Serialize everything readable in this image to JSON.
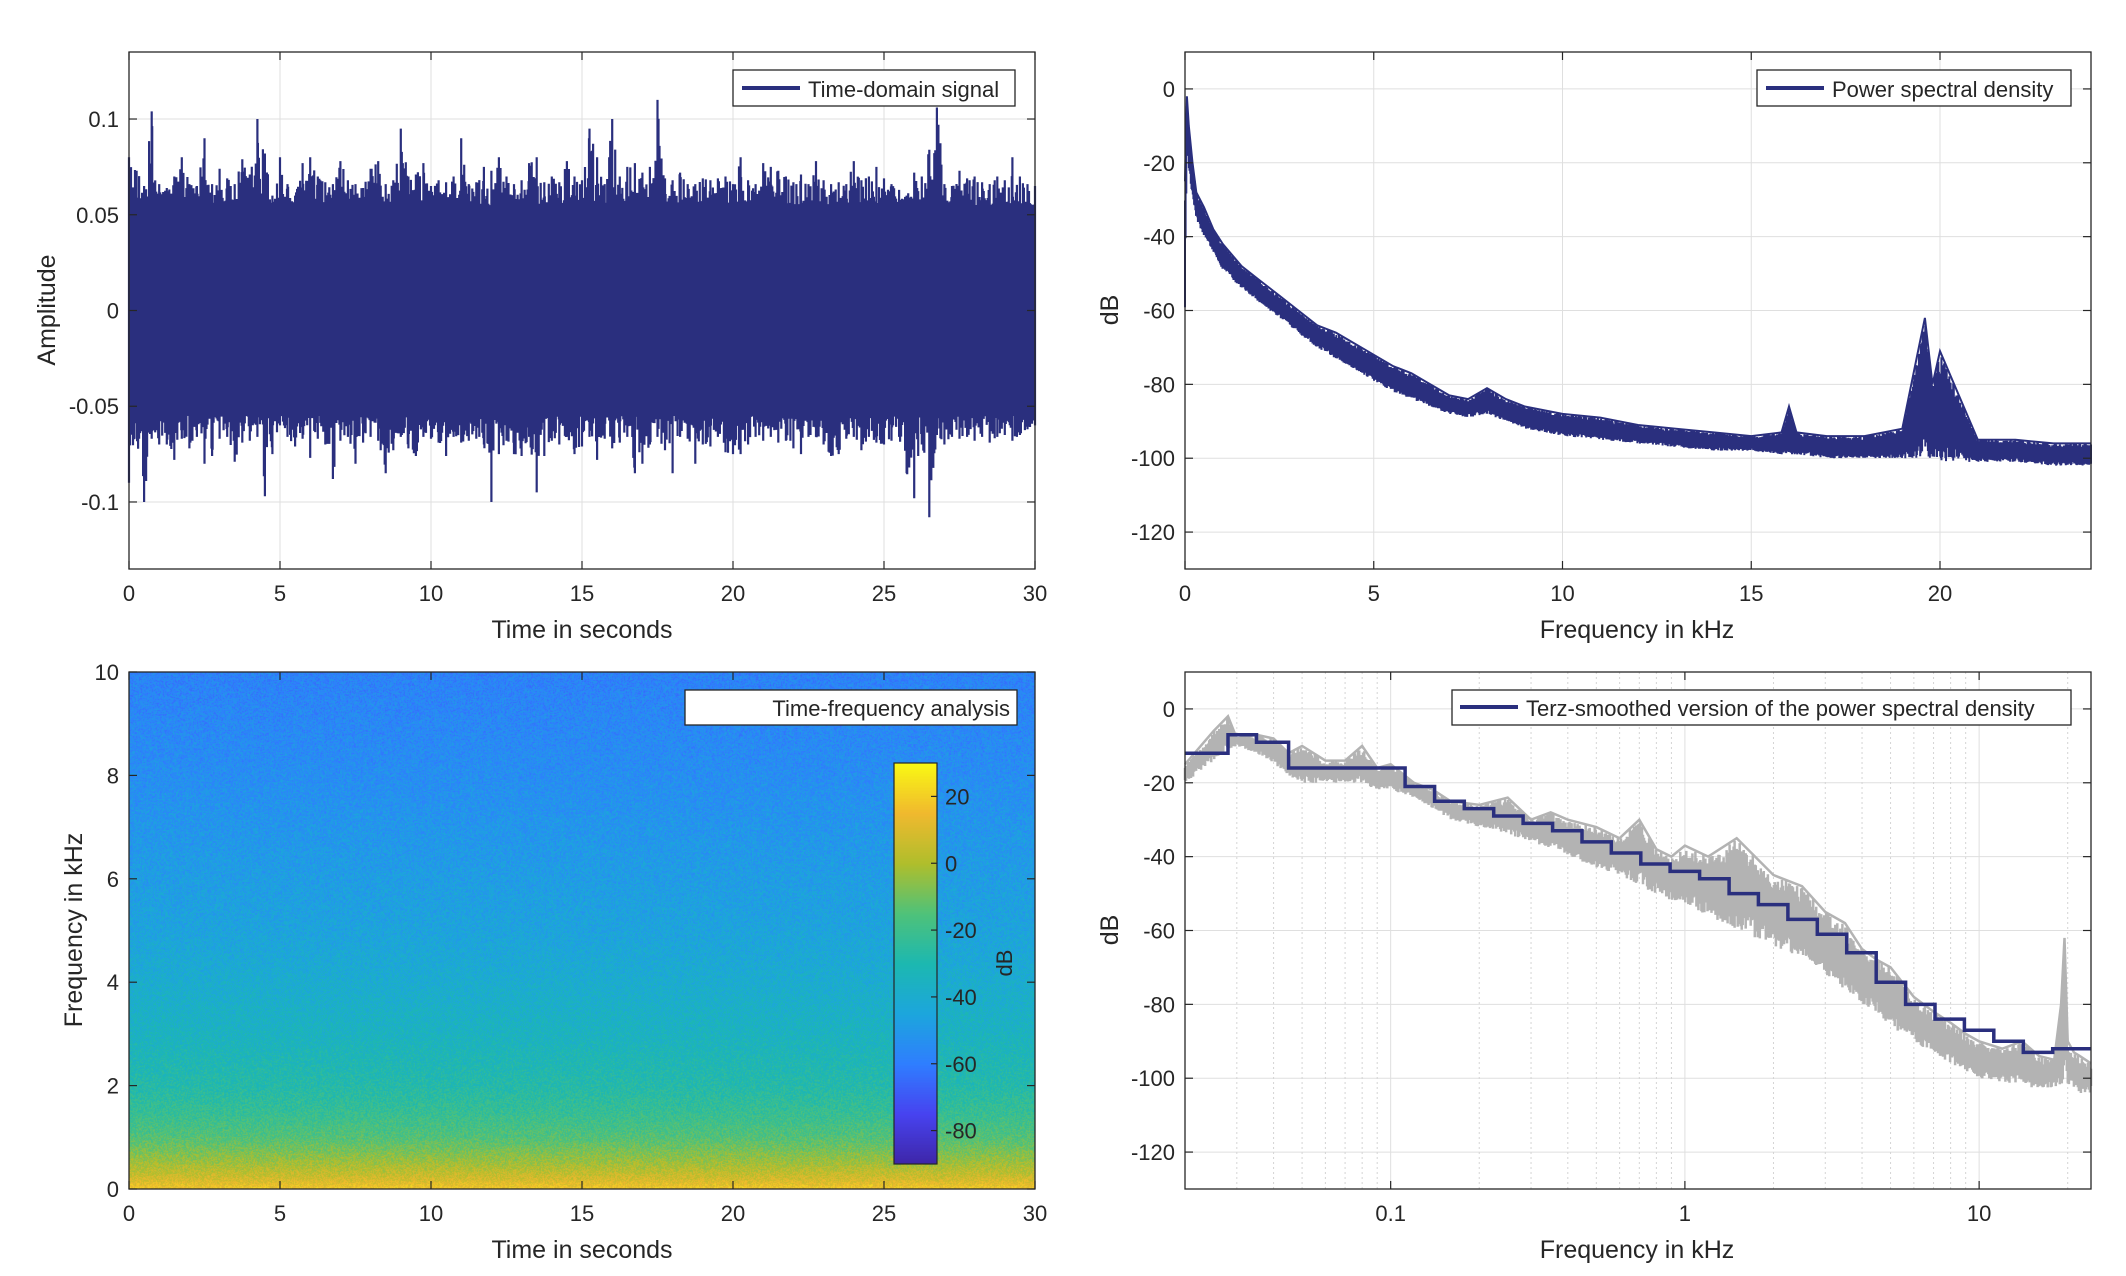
{
  "figure": {
    "background": "#ffffff",
    "line_color": "#2a2f7e",
    "smoothed_raw_color": "#b3b3b3"
  },
  "chart_data": [
    {
      "type": "line",
      "id": "time-domain",
      "xlabel": "Time in seconds",
      "ylabel": "Amplitude",
      "xlim": [
        0,
        30
      ],
      "ylim": [
        -0.135,
        0.135
      ],
      "xticks": [
        0,
        5,
        10,
        15,
        20,
        25,
        30
      ],
      "xtick_labels": [
        "0",
        "5",
        "10",
        "15",
        "20",
        "25",
        "30"
      ],
      "yticks": [
        -0.1,
        -0.05,
        0,
        0.05,
        0.1
      ],
      "ytick_labels": [
        "-0.1",
        "-0.05",
        "0",
        "0.05",
        "0.1"
      ],
      "grid": true,
      "legend": {
        "placement": "top-right",
        "entries": [
          "Time-domain signal"
        ]
      },
      "series": [
        {
          "name": "Time-domain signal",
          "description_stats": {
            "typical_band": [
              -0.055,
              0.055
            ]
          },
          "t": [
            0,
            0.25,
            0.5,
            0.75,
            1.0,
            1.25,
            1.5,
            1.75,
            2.0,
            2.25,
            2.5,
            2.75,
            3.0,
            3.25,
            3.5,
            3.75,
            4.0,
            4.25,
            4.5,
            4.75,
            5.0,
            5.25,
            5.5,
            5.75,
            6.0,
            6.25,
            6.5,
            6.75,
            7.0,
            7.25,
            7.5,
            7.75,
            8.0,
            8.25,
            8.5,
            8.75,
            9.0,
            9.25,
            9.5,
            9.75,
            10.0,
            10.25,
            10.5,
            10.75,
            11.0,
            11.25,
            11.5,
            11.75,
            12.0,
            12.25,
            12.5,
            12.75,
            13.0,
            13.25,
            13.5,
            13.75,
            14.0,
            14.25,
            14.5,
            14.75,
            15.0,
            15.25,
            15.5,
            15.75,
            16.0,
            16.25,
            16.5,
            16.75,
            17.0,
            17.25,
            17.5,
            17.75,
            18.0,
            18.25,
            18.5,
            18.75,
            19.0,
            19.25,
            19.5,
            19.75,
            20.0,
            20.25,
            20.5,
            20.75,
            21.0,
            21.25,
            21.5,
            21.75,
            22.0,
            22.25,
            22.5,
            22.75,
            23.0,
            23.25,
            23.5,
            23.75,
            24.0,
            24.25,
            24.5,
            24.75,
            25.0,
            25.25,
            25.5,
            25.75,
            26.0,
            26.25,
            26.5,
            26.75,
            27.0,
            27.25,
            27.5,
            27.75,
            28.0,
            28.25,
            28.5,
            28.75,
            29.0,
            29.25,
            29.5,
            29.75,
            30.0
          ],
          "max": [
            0.08,
            0.073,
            0.065,
            0.104,
            0.066,
            0.064,
            0.07,
            0.08,
            0.066,
            0.065,
            0.09,
            0.066,
            0.074,
            0.069,
            0.066,
            0.079,
            0.071,
            0.1,
            0.082,
            0.06,
            0.08,
            0.066,
            0.06,
            0.077,
            0.08,
            0.07,
            0.067,
            0.066,
            0.078,
            0.068,
            0.066,
            0.064,
            0.074,
            0.078,
            0.066,
            0.068,
            0.095,
            0.07,
            0.071,
            0.077,
            0.065,
            0.068,
            0.067,
            0.07,
            0.09,
            0.066,
            0.067,
            0.075,
            0.073,
            0.08,
            0.07,
            0.066,
            0.068,
            0.077,
            0.08,
            0.067,
            0.07,
            0.067,
            0.078,
            0.07,
            0.068,
            0.095,
            0.08,
            0.066,
            0.1,
            0.07,
            0.075,
            0.077,
            0.072,
            0.075,
            0.11,
            0.069,
            0.068,
            0.072,
            0.066,
            0.066,
            0.069,
            0.068,
            0.069,
            0.07,
            0.066,
            0.08,
            0.068,
            0.066,
            0.077,
            0.075,
            0.073,
            0.07,
            0.067,
            0.071,
            0.066,
            0.078,
            0.068,
            0.066,
            0.067,
            0.066,
            0.078,
            0.068,
            0.07,
            0.075,
            0.069,
            0.066,
            0.063,
            0.06,
            0.072,
            0.07,
            0.084,
            0.106,
            0.066,
            0.065,
            0.073,
            0.069,
            0.07,
            0.067,
            0.066,
            0.07,
            0.068,
            0.08,
            0.07,
            0.066,
            0.065
          ],
          "min": [
            -0.09,
            -0.067,
            -0.1,
            -0.067,
            -0.07,
            -0.07,
            -0.078,
            -0.067,
            -0.072,
            -0.066,
            -0.08,
            -0.076,
            -0.067,
            -0.066,
            -0.079,
            -0.069,
            -0.068,
            -0.066,
            -0.097,
            -0.075,
            -0.06,
            -0.066,
            -0.071,
            -0.067,
            -0.077,
            -0.067,
            -0.07,
            -0.088,
            -0.068,
            -0.066,
            -0.08,
            -0.069,
            -0.066,
            -0.068,
            -0.085,
            -0.073,
            -0.066,
            -0.072,
            -0.076,
            -0.066,
            -0.067,
            -0.069,
            -0.076,
            -0.066,
            -0.069,
            -0.068,
            -0.067,
            -0.07,
            -0.1,
            -0.075,
            -0.068,
            -0.075,
            -0.076,
            -0.066,
            -0.095,
            -0.076,
            -0.068,
            -0.07,
            -0.066,
            -0.075,
            -0.071,
            -0.066,
            -0.078,
            -0.067,
            -0.072,
            -0.069,
            -0.066,
            -0.085,
            -0.08,
            -0.07,
            -0.066,
            -0.073,
            -0.085,
            -0.066,
            -0.067,
            -0.08,
            -0.07,
            -0.071,
            -0.066,
            -0.074,
            -0.075,
            -0.075,
            -0.07,
            -0.066,
            -0.068,
            -0.066,
            -0.069,
            -0.068,
            -0.072,
            -0.075,
            -0.066,
            -0.066,
            -0.07,
            -0.076,
            -0.075,
            -0.067,
            -0.066,
            -0.073,
            -0.066,
            -0.069,
            -0.07,
            -0.068,
            -0.066,
            -0.085,
            -0.098,
            -0.07,
            -0.108,
            -0.065,
            -0.07,
            -0.066,
            -0.067,
            -0.066,
            -0.068,
            -0.066,
            -0.069,
            -0.066,
            -0.065,
            -0.068,
            -0.065,
            -0.062,
            -0.06
          ]
        }
      ]
    },
    {
      "type": "line",
      "id": "psd",
      "xlabel": "Frequency in kHz",
      "ylabel": "dB",
      "xlim": [
        0,
        24
      ],
      "ylim": [
        -130,
        10
      ],
      "xticks": [
        0,
        5,
        10,
        15,
        20
      ],
      "xtick_labels": [
        "0",
        "5",
        "10",
        "15",
        "20"
      ],
      "yticks": [
        0,
        -20,
        -40,
        -60,
        -80,
        -100,
        -120
      ],
      "ytick_labels": [
        "0",
        "-20",
        "-40",
        "-60",
        "-80",
        "-100",
        "-120"
      ],
      "grid": true,
      "legend": {
        "placement": "top-right",
        "entries": [
          "Power spectral density"
        ]
      },
      "series": [
        {
          "name": "Power spectral density",
          "f": [
            0,
            0.05,
            0.1,
            0.2,
            0.3,
            0.5,
            0.75,
            1.0,
            1.5,
            2.0,
            2.5,
            3.0,
            3.5,
            4.0,
            4.5,
            5.0,
            5.5,
            6.0,
            6.5,
            7.0,
            7.5,
            8.0,
            8.5,
            9.0,
            10.0,
            11.0,
            12.0,
            13.0,
            14.0,
            15.0,
            15.8,
            16.0,
            16.2,
            17.0,
            18.0,
            19.0,
            19.4,
            19.6,
            19.8,
            20.0,
            21.0,
            22.0,
            23.0,
            24.0
          ],
          "upper": [
            -25,
            -2,
            -10,
            -20,
            -28,
            -32,
            -38,
            -42,
            -48,
            -52,
            -56,
            -60,
            -64,
            -66,
            -69,
            -72,
            -75,
            -77,
            -80,
            -83,
            -84,
            -81,
            -84,
            -86,
            -88,
            -89,
            -91,
            -92,
            -93,
            -94,
            -93,
            -86,
            -93,
            -94,
            -94,
            -92,
            -72,
            -62,
            -80,
            -71,
            -95,
            -95,
            -96,
            -96
          ],
          "lower": [
            -60,
            -15,
            -22,
            -30,
            -35,
            -40,
            -44,
            -49,
            -54,
            -58,
            -62,
            -66,
            -70,
            -73,
            -76,
            -79,
            -82,
            -84,
            -86,
            -88,
            -89,
            -88,
            -90,
            -92,
            -94,
            -95,
            -96,
            -97,
            -98,
            -98,
            -99,
            -99,
            -99,
            -100,
            -100,
            -100,
            -100,
            -100,
            -100,
            -101,
            -101,
            -101,
            -102,
            -102
          ]
        }
      ]
    },
    {
      "type": "heatmap",
      "id": "spectrogram",
      "xlabel": "Time in seconds",
      "ylabel": "Frequency in kHz",
      "xlim": [
        0,
        30
      ],
      "ylim": [
        0,
        10
      ],
      "xticks": [
        0,
        5,
        10,
        15,
        20,
        25,
        30
      ],
      "xtick_labels": [
        "0",
        "5",
        "10",
        "15",
        "20",
        "25",
        "30"
      ],
      "yticks": [
        0,
        2,
        4,
        6,
        8,
        10
      ],
      "ytick_labels": [
        "0",
        "2",
        "4",
        "6",
        "8",
        "10"
      ],
      "title_box": "Time-frequency analysis",
      "colorbar": {
        "label": "dB",
        "range": [
          -90,
          30
        ],
        "ticks": [
          20,
          0,
          -20,
          -40,
          -60,
          -80
        ],
        "tick_labels": [
          "20",
          "0",
          "-20",
          "-40",
          "-60",
          "-80"
        ],
        "colormap": [
          "#3e26a8",
          "#4743f0",
          "#2f7eff",
          "#1ca6dd",
          "#1cb8b1",
          "#4fc27a",
          "#b0be2c",
          "#f0b92e",
          "#f9f914"
        ]
      },
      "profile_freq_khz": [
        0,
        0.2,
        0.5,
        1,
        1.5,
        2,
        3,
        4,
        5,
        6,
        7,
        8,
        9,
        10
      ],
      "profile_db": [
        18,
        8,
        -2,
        -15,
        -22,
        -28,
        -35,
        -40,
        -45,
        -48,
        -51,
        -54,
        -56,
        -58
      ]
    },
    {
      "type": "line",
      "id": "terz",
      "xlabel": "Frequency in kHz",
      "ylabel": "dB",
      "xscale": "log",
      "xlim": [
        0.02,
        24
      ],
      "ylim": [
        -130,
        10
      ],
      "xticks": [
        0.1,
        1,
        10
      ],
      "xtick_labels": [
        "0.1",
        "1",
        "10"
      ],
      "yticks": [
        0,
        -20,
        -40,
        -60,
        -80,
        -100,
        -120
      ],
      "ytick_labels": [
        "0",
        "-20",
        "-40",
        "-60",
        "-80",
        "-100",
        "-120"
      ],
      "grid": true,
      "legend": {
        "placement": "top-right",
        "entries": [
          "Terz-smoothed version of the power spectral density"
        ]
      },
      "series": [
        {
          "name": "raw-psd-gray",
          "f": [
            0.02,
            0.025,
            0.028,
            0.03,
            0.035,
            0.04,
            0.045,
            0.05,
            0.06,
            0.07,
            0.08,
            0.09,
            0.1,
            0.12,
            0.14,
            0.16,
            0.2,
            0.25,
            0.3,
            0.35,
            0.4,
            0.5,
            0.6,
            0.7,
            0.8,
            0.9,
            1.0,
            1.2,
            1.5,
            2.0,
            2.5,
            3.0,
            3.5,
            4.0,
            4.5,
            5.0,
            6.0,
            7.0,
            8.0,
            9.0,
            10.0,
            12.0,
            14.0,
            16.0,
            18.0,
            19.0,
            19.5,
            20.0,
            21.0,
            22.0,
            24.0
          ],
          "upper": [
            -15,
            -6,
            -2,
            -8,
            -7,
            -8,
            -12,
            -10,
            -14,
            -14,
            -10,
            -16,
            -15,
            -20,
            -22,
            -25,
            -26,
            -24,
            -30,
            -28,
            -30,
            -32,
            -35,
            -30,
            -38,
            -40,
            -37,
            -40,
            -35,
            -45,
            -48,
            -55,
            -58,
            -65,
            -68,
            -70,
            -78,
            -82,
            -85,
            -88,
            -90,
            -92,
            -90,
            -94,
            -95,
            -80,
            -62,
            -90,
            -93,
            -94,
            -96
          ],
          "lower": [
            -20,
            -14,
            -11,
            -10,
            -12,
            -15,
            -18,
            -20,
            -20,
            -20,
            -20,
            -22,
            -22,
            -24,
            -27,
            -30,
            -32,
            -34,
            -36,
            -38,
            -40,
            -43,
            -45,
            -48,
            -50,
            -52,
            -53,
            -56,
            -60,
            -64,
            -68,
            -72,
            -76,
            -80,
            -82,
            -86,
            -90,
            -94,
            -96,
            -98,
            -100,
            -101,
            -102,
            -103,
            -103,
            -102,
            -100,
            -103,
            -103,
            -104,
            -104
          ]
        },
        {
          "name": "Terz-smoothed version of the power spectral density",
          "edges": [
            0.02,
            0.028,
            0.035,
            0.045,
            0.056,
            0.071,
            0.089,
            0.112,
            0.141,
            0.178,
            0.224,
            0.282,
            0.355,
            0.447,
            0.562,
            0.708,
            0.891,
            1.122,
            1.413,
            1.778,
            2.239,
            2.818,
            3.548,
            4.467,
            5.623,
            7.079,
            8.913,
            11.22,
            14.13,
            17.78,
            24.0
          ],
          "levels": [
            -12,
            -7,
            -9,
            -16,
            -16,
            -16,
            -16,
            -21,
            -25,
            -27,
            -29,
            -31,
            -33,
            -36,
            -39,
            -42,
            -44,
            -46,
            -50,
            -53,
            -57,
            -61,
            -66,
            -74,
            -80,
            -84,
            -87,
            -90,
            -93,
            -92
          ]
        }
      ]
    }
  ]
}
